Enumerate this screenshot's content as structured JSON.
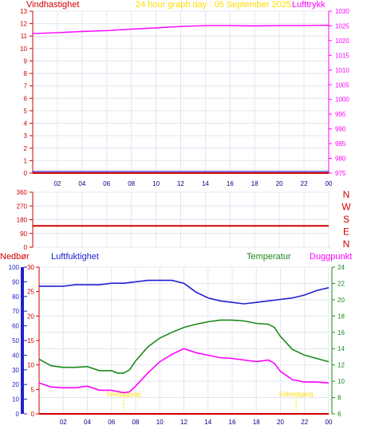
{
  "title": "24 hour graph day : 05 September 2025",
  "colors": {
    "wind": "#d00000",
    "pressure": "#ff00ff",
    "title": "#ffdd00",
    "axis_blue": "#0000cc",
    "humidity": "#2020d0",
    "temperature": "#1a8a1a",
    "dewpoint": "#ff00ff",
    "rain": "#d00000",
    "sun": "#ffdd00",
    "grid": "#e4e4f4"
  },
  "hour_labels": [
    "02",
    "04",
    "06",
    "08",
    "10",
    "12",
    "14",
    "16",
    "18",
    "20",
    "22",
    "00"
  ],
  "chart_data": [
    {
      "type": "line",
      "name": "wind-pressure",
      "left_axis_label": "Vindhastighet",
      "right_axis_label": "Lufttrykk",
      "left_ticks": [
        "0",
        "1",
        "2",
        "3",
        "4",
        "5",
        "6",
        "7",
        "8",
        "9",
        "10",
        "11",
        "12",
        "13"
      ],
      "left_range": [
        0,
        13
      ],
      "right_ticks": [
        "975",
        "980",
        "985",
        "990",
        "995",
        "1000",
        "1005",
        "1010",
        "1015",
        "1020",
        "1025",
        "1030"
      ],
      "right_range": [
        975,
        1030
      ],
      "x_range": [
        0,
        24
      ],
      "series": [
        {
          "key": "wind",
          "axis": "left",
          "x": [
            0,
            24
          ],
          "y": [
            0,
            0
          ]
        },
        {
          "key": "pressure",
          "axis": "right",
          "x": [
            0,
            2,
            4,
            6,
            8,
            10,
            12,
            14,
            16,
            18,
            20,
            22,
            24
          ],
          "y": [
            1022.4,
            1022.7,
            1023.1,
            1023.4,
            1023.9,
            1024.3,
            1024.8,
            1025.1,
            1025.1,
            1025.0,
            1025.1,
            1025.1,
            1025.2
          ]
        }
      ]
    },
    {
      "type": "line",
      "name": "wind-direction",
      "left_ticks": [
        "0",
        "90",
        "180",
        "270",
        "360"
      ],
      "left_range": [
        0,
        360
      ],
      "compass": [
        "N",
        "W",
        "S",
        "E",
        "N"
      ],
      "x_range": [
        0,
        24
      ],
      "series": [
        {
          "key": "wind",
          "axis": "left",
          "x": [
            0,
            24
          ],
          "y": [
            140,
            140
          ]
        }
      ]
    },
    {
      "type": "line",
      "name": "rain-humidity-temperature",
      "labels": {
        "rain": "Nedbør",
        "humidity": "Luftfuktighet",
        "temperature": "Temperatur",
        "dewpoint": "Duggpunkt"
      },
      "rain_ticks": [
        "0",
        "5",
        "10",
        "15",
        "20",
        "25",
        "30"
      ],
      "rain_range": [
        0,
        30
      ],
      "humidity_ticks": [
        "0",
        "10",
        "20",
        "30",
        "40",
        "50",
        "60",
        "70",
        "80",
        "90",
        "100"
      ],
      "humidity_range": [
        0,
        100
      ],
      "temp_ticks": [
        "6",
        "8",
        "10",
        "12",
        "14",
        "16",
        "18",
        "20",
        "22",
        "24"
      ],
      "temp_range": [
        6,
        24
      ],
      "sunrise_label": "Soloppgang",
      "sunrise_hour": 7.0,
      "sunset_label": "Solnedgang",
      "sunset_hour": 21.3,
      "x_range": [
        0,
        24
      ],
      "series": [
        {
          "key": "humidity",
          "axis": "humidity",
          "x": [
            0,
            1,
            2,
            3,
            4,
            5,
            6,
            7,
            8,
            9,
            10,
            11,
            12,
            12.5,
            13,
            13.5,
            14,
            15,
            16,
            17,
            18,
            19,
            20,
            21,
            22,
            23,
            24
          ],
          "y": [
            87,
            87,
            87,
            88,
            88,
            88,
            89,
            89,
            90,
            91,
            91,
            91,
            89,
            86,
            83,
            81,
            79,
            77,
            76,
            75,
            76,
            77,
            78,
            79,
            81,
            84,
            86
          ]
        },
        {
          "key": "temperature",
          "axis": "temp",
          "x": [
            0,
            0.5,
            1,
            2,
            3,
            4,
            5,
            6,
            6.5,
            7,
            7.5,
            8,
            9,
            10,
            11,
            12,
            13,
            14,
            15,
            16,
            17,
            18,
            19,
            19.5,
            20,
            21,
            22,
            23,
            24
          ],
          "y": [
            12.7,
            12.3,
            11.9,
            11.7,
            11.7,
            11.8,
            11.3,
            11.3,
            11.0,
            11.0,
            11.4,
            12.5,
            14.2,
            15.3,
            16.0,
            16.6,
            17.0,
            17.3,
            17.5,
            17.5,
            17.4,
            17.1,
            17.0,
            16.6,
            15.5,
            13.9,
            13.2,
            12.8,
            12.4
          ]
        },
        {
          "key": "dewpoint",
          "axis": "temp",
          "x": [
            0,
            1,
            2,
            3,
            4,
            5,
            6,
            7,
            7.5,
            8,
            9,
            10,
            11,
            12,
            13,
            14,
            15,
            16,
            17,
            18,
            19,
            19.5,
            20,
            21,
            22,
            23,
            24
          ],
          "y": [
            9.8,
            9.3,
            9.2,
            9.2,
            9.4,
            8.9,
            8.9,
            8.6,
            8.7,
            9.4,
            11.0,
            12.4,
            13.3,
            14.0,
            13.5,
            13.2,
            12.9,
            12.8,
            12.6,
            12.4,
            12.6,
            12.2,
            11.2,
            10.2,
            9.9,
            9.9,
            9.8
          ]
        },
        {
          "key": "rain",
          "axis": "rain",
          "x": [
            0,
            24
          ],
          "y": [
            0,
            0
          ]
        }
      ]
    }
  ]
}
